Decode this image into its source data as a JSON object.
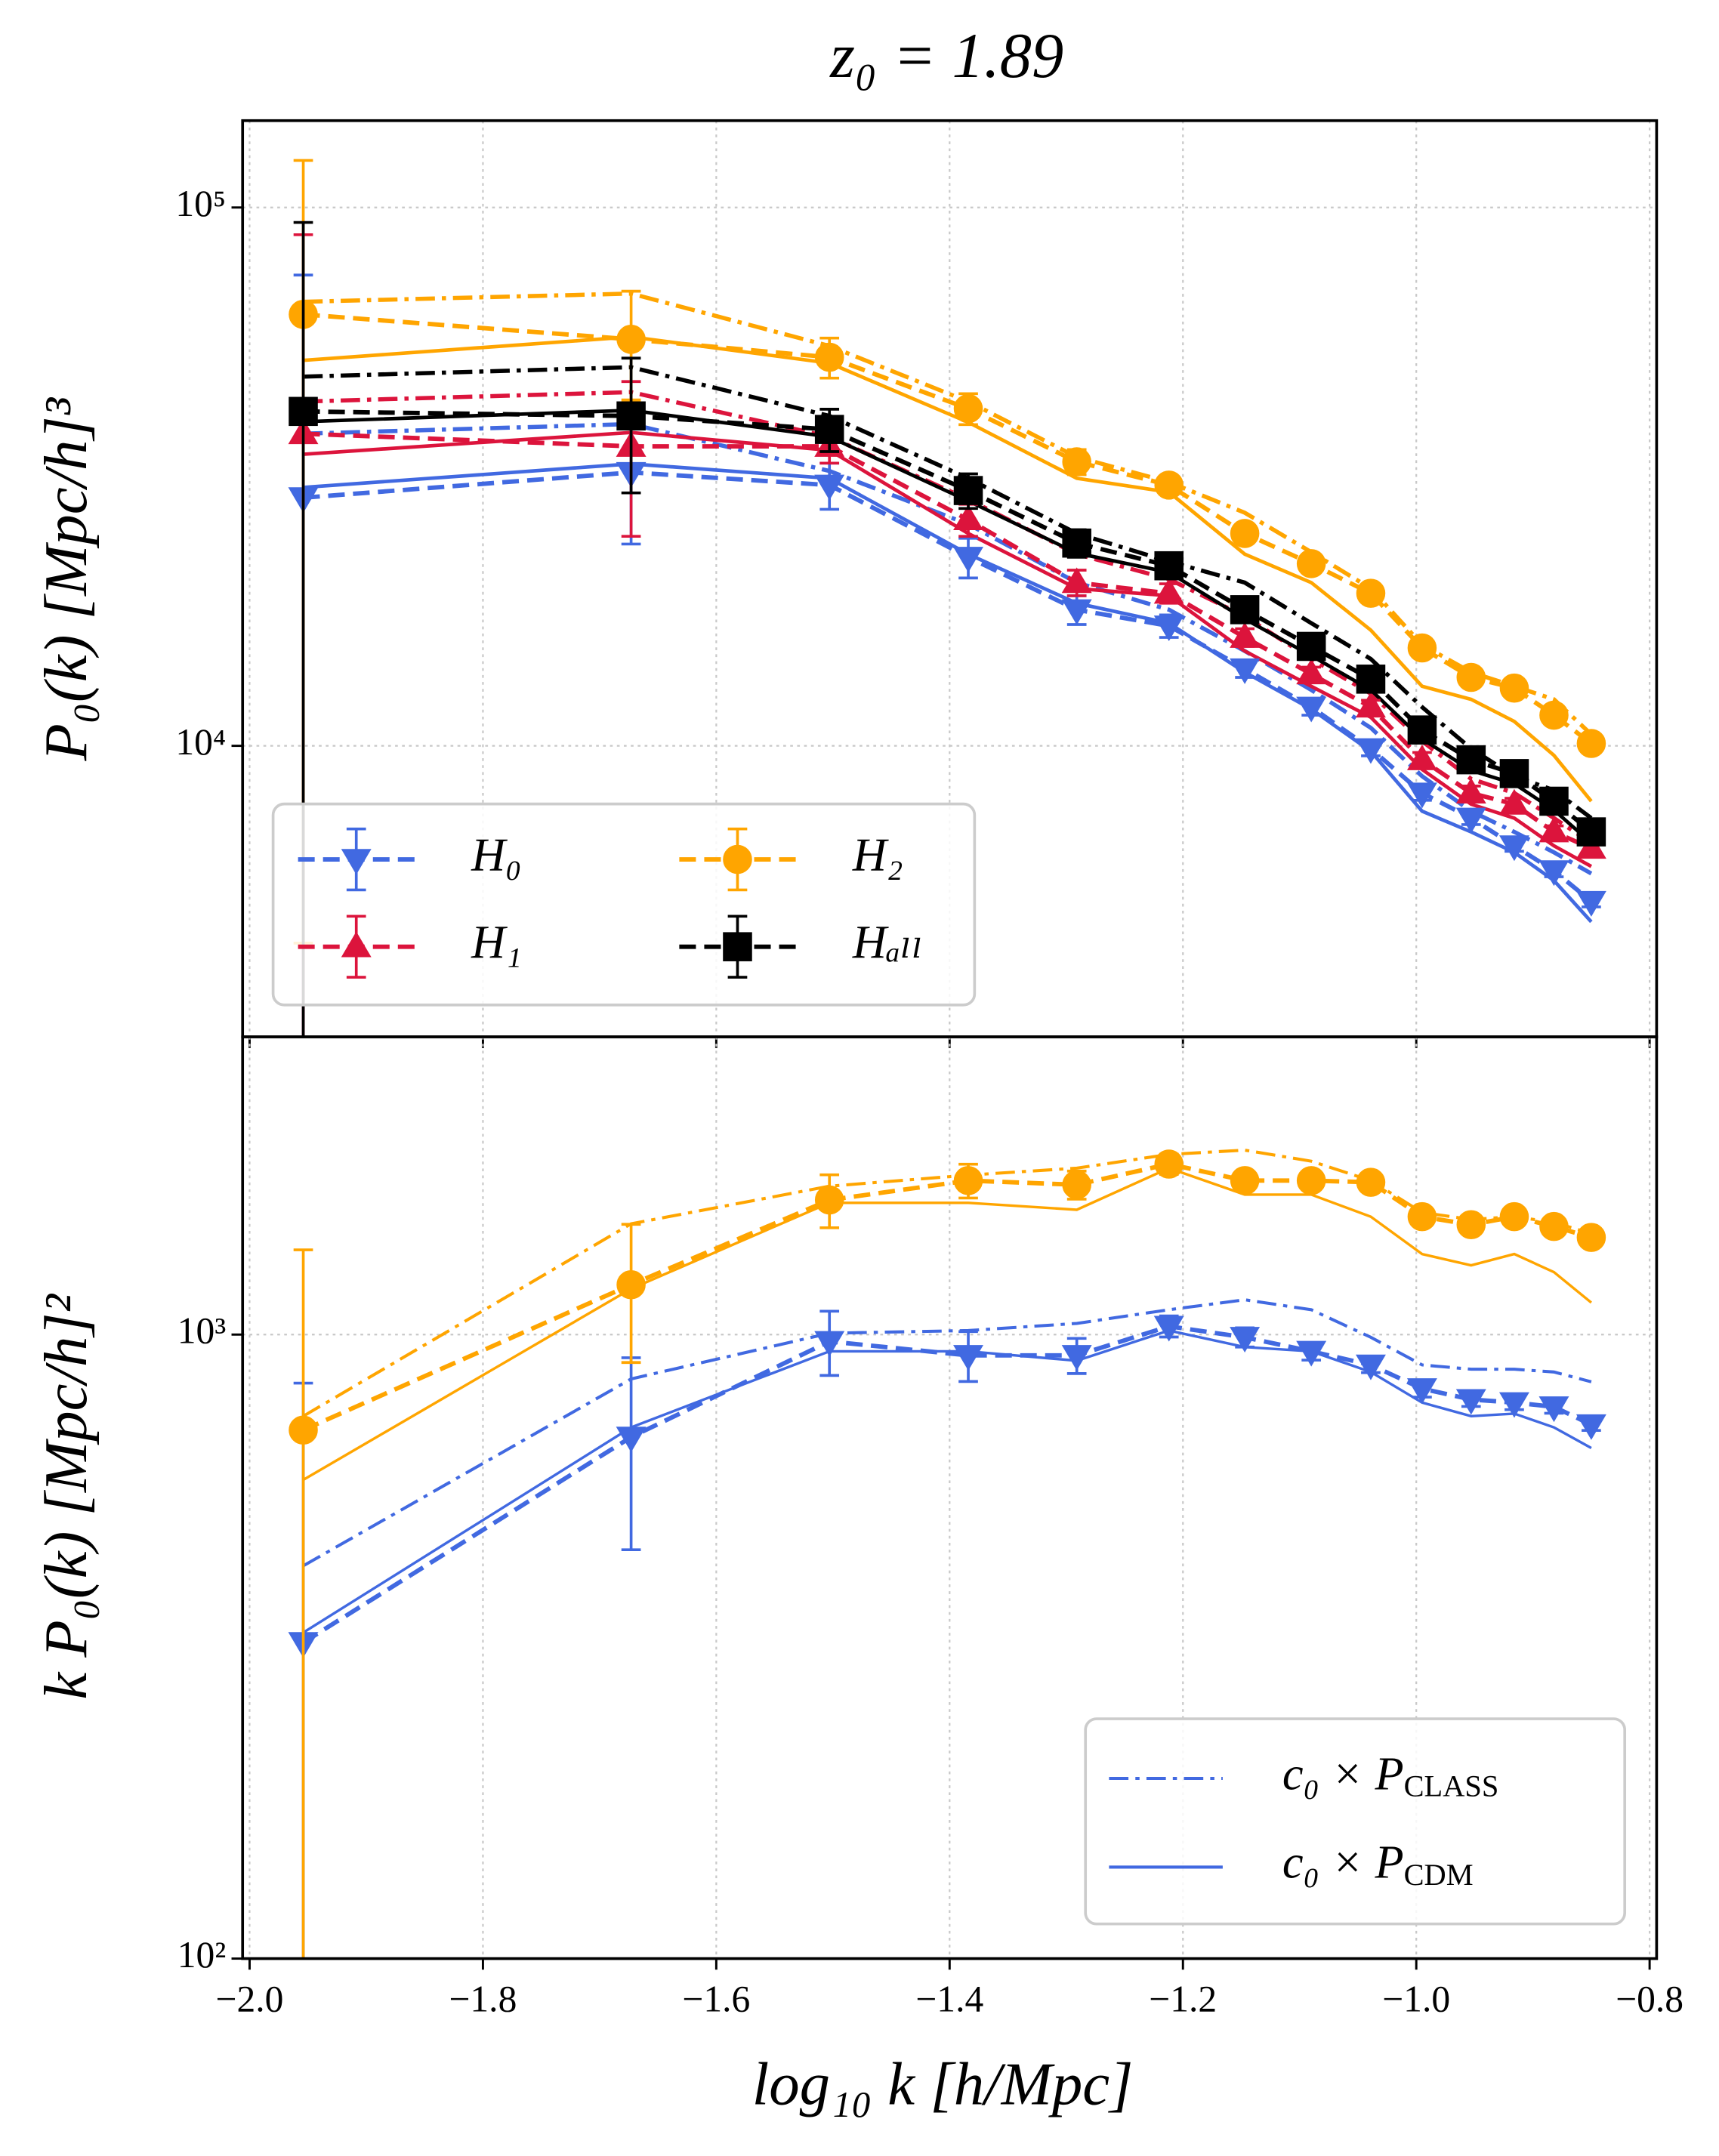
{
  "chart_data": [
    {
      "type": "line",
      "title": "z₀ = 1.89",
      "y_label": "P₀(k) [Mpc/h]³",
      "log_y": true,
      "grid": true,
      "legend": "lower left",
      "x": [
        -1.954,
        -1.673,
        -1.503,
        -1.384,
        -1.291,
        -1.212,
        -1.147,
        -1.09,
        -1.039,
        -0.995,
        -0.953,
        -0.916,
        -0.882,
        -0.85
      ],
      "xlim": [
        -2.006,
        -0.794
      ],
      "xticks": [
        -2.0,
        -1.8,
        -1.6,
        -1.4,
        -1.2,
        -1.0,
        -0.8
      ],
      "ylim": [
        2880,
        145000
      ],
      "yticks": [
        {
          "value": 10000,
          "label": "10⁴"
        },
        {
          "value": 100000,
          "label": "10⁵"
        }
      ],
      "series": [
        {
          "name": "H₀",
          "color": "#4169e1",
          "marker": "triangle-down",
          "values": [
            28900,
            32200,
            30500,
            22400,
            17900,
            16700,
            13900,
            11800,
            9880,
            8170,
            7340,
            6520,
            5860,
            5140
          ],
          "errors": [
            46000,
            8500,
            3000,
            1900,
            1100,
            800,
            500,
            400,
            300,
            250,
            200,
            150,
            150,
            120
          ],
          "class": [
            38000,
            39600,
            32400,
            25800,
            20100,
            17900,
            15000,
            12700,
            10800,
            8780,
            7560,
            6920,
            6340,
            5790
          ],
          "cdm": [
            30200,
            33400,
            31400,
            22700,
            18400,
            16900,
            13700,
            11700,
            9770,
            7560,
            6920,
            6340,
            5620,
            4710
          ]
        },
        {
          "name": "H₁",
          "color": "#dc143c",
          "marker": "triangle-up",
          "values": [
            38000,
            36000,
            36000,
            26300,
            20100,
            19200,
            15900,
            13600,
            11800,
            9420,
            8170,
            7790,
            6920,
            6450
          ],
          "errors": [
            51000,
            11500,
            2500,
            1800,
            1100,
            800,
            600,
            400,
            350,
            300,
            250,
            200,
            180,
            150
          ],
          "class": [
            43600,
            45400,
            37500,
            28700,
            22700,
            20400,
            17400,
            14500,
            12500,
            10200,
            8680,
            8170,
            7340,
            6600
          ],
          "cdm": [
            34800,
            38200,
            35400,
            24800,
            19600,
            19000,
            15000,
            12900,
            11300,
            9040,
            7790,
            7340,
            6520,
            5970
          ]
        },
        {
          "name": "H₂",
          "color": "#ffa500",
          "marker": "circle",
          "values": [
            63300,
            56900,
            52700,
            42300,
            33700,
            30500,
            24800,
            21800,
            19200,
            15200,
            13400,
            12800,
            11400,
            10100
          ],
          "errors": [
            59000,
            13000,
            4500,
            2800,
            1800,
            1200,
            900,
            700,
            500,
            400,
            350,
            300,
            250,
            200
          ],
          "class": [
            66800,
            69200,
            55300,
            43600,
            34400,
            30900,
            27100,
            22900,
            19600,
            15400,
            13700,
            12900,
            12200,
            10500
          ],
          "cdm": [
            52000,
            57500,
            51400,
            39900,
            31400,
            29600,
            22700,
            20100,
            16400,
            12900,
            12200,
            11100,
            9600,
            7890
          ]
        },
        {
          "name": "Hₐₗₗ",
          "color": "#000000",
          "marker": "square",
          "values": [
            41800,
            41000,
            38700,
            29800,
            23800,
            21600,
            17900,
            15300,
            13300,
            10700,
            9420,
            8880,
            7890,
            6920
          ],
          "errors": [
            52000,
            11500,
            3500,
            2200,
            1400,
            1000,
            700,
            500,
            400,
            350,
            300,
            250,
            200,
            180
          ],
          "class": [
            48500,
            50500,
            41000,
            31400,
            24800,
            22000,
            20100,
            16900,
            14500,
            11800,
            9880,
            8780,
            8270,
            7340
          ],
          "cdm": [
            40000,
            42000,
            37500,
            28500,
            22800,
            21000,
            17200,
            14700,
            12700,
            10300,
            9000,
            8500,
            7600,
            6600
          ]
        }
      ]
    },
    {
      "type": "line",
      "x_label": "log₁₀ k [h/Mpc]",
      "y_label": "k P₀(k) [Mpc/h]²",
      "log_y": true,
      "grid": true,
      "legend": "lower right",
      "x": [
        -1.954,
        -1.673,
        -1.503,
        -1.384,
        -1.291,
        -1.212,
        -1.147,
        -1.09,
        -1.039,
        -0.995,
        -0.953,
        -0.916,
        -0.882,
        -0.85
      ],
      "xlim": [
        -2.006,
        -0.794
      ],
      "xticks": [
        {
          "value": -2.0,
          "label": "−2.0"
        },
        {
          "value": -1.8,
          "label": "−1.8"
        },
        {
          "value": -1.6,
          "label": "−1.6"
        },
        {
          "value": -1.4,
          "label": "−1.4"
        },
        {
          "value": -1.2,
          "label": "−1.2"
        },
        {
          "value": -1.0,
          "label": "−1.0"
        },
        {
          "value": -0.8,
          "label": "−0.8"
        }
      ],
      "ylim": [
        100,
        3000
      ],
      "yticks": [
        {
          "value": 100,
          "label": "10²"
        },
        {
          "value": 1000,
          "label": "10³"
        }
      ],
      "line_legend": {
        "color": "#4169e1",
        "entries": [
          {
            "name": "c₀ × PCLASS",
            "style": "dashdot"
          },
          {
            "name": "c₀ × PCDM",
            "style": "solid"
          }
        ]
      },
      "series": [
        {
          "color": "#4169e1",
          "marker": "triangle-down",
          "values": [
            321,
            685,
            975,
            926,
            926,
            1031,
            990,
            940,
            894,
            819,
            787,
            778,
            766,
            717
          ],
          "errors": [
            515,
            233,
            115,
            85,
            60,
            40,
            35,
            30,
            25,
            25,
            20,
            20,
            18,
            15
          ],
          "class": [
            426,
            849,
            1005,
            1015,
            1042,
            1096,
            1137,
            1096,
            990,
            894,
            880,
            880,
            871,
            840
          ],
          "cdm": [
            333,
            710,
            940,
            940,
            908,
            1015,
            955,
            940,
            871,
            778,
            740,
            747,
            710,
            658
          ]
        },
        {
          "color": "#ffa500",
          "marker": "circle",
          "values": [
            703,
            1202,
            1643,
            1765,
            1738,
            1876,
            1765,
            1765,
            1754,
            1545,
            1500,
            1545,
            1490,
            1431
          ],
          "errors": [
            664,
            300,
            160,
            110,
            90,
            70,
            60,
            50,
            40,
            35,
            30,
            30,
            28,
            25
          ],
          "class": [
            740,
            1505,
            1729,
            1801,
            1848,
            1944,
            1975,
            1896,
            1765,
            1569,
            1529,
            1545,
            1513,
            1452
          ],
          "cdm": [
            585,
            1184,
            1626,
            1626,
            1585,
            1848,
            1676,
            1676,
            1545,
            1346,
            1291,
            1346,
            1259,
            1125
          ]
        }
      ]
    }
  ]
}
